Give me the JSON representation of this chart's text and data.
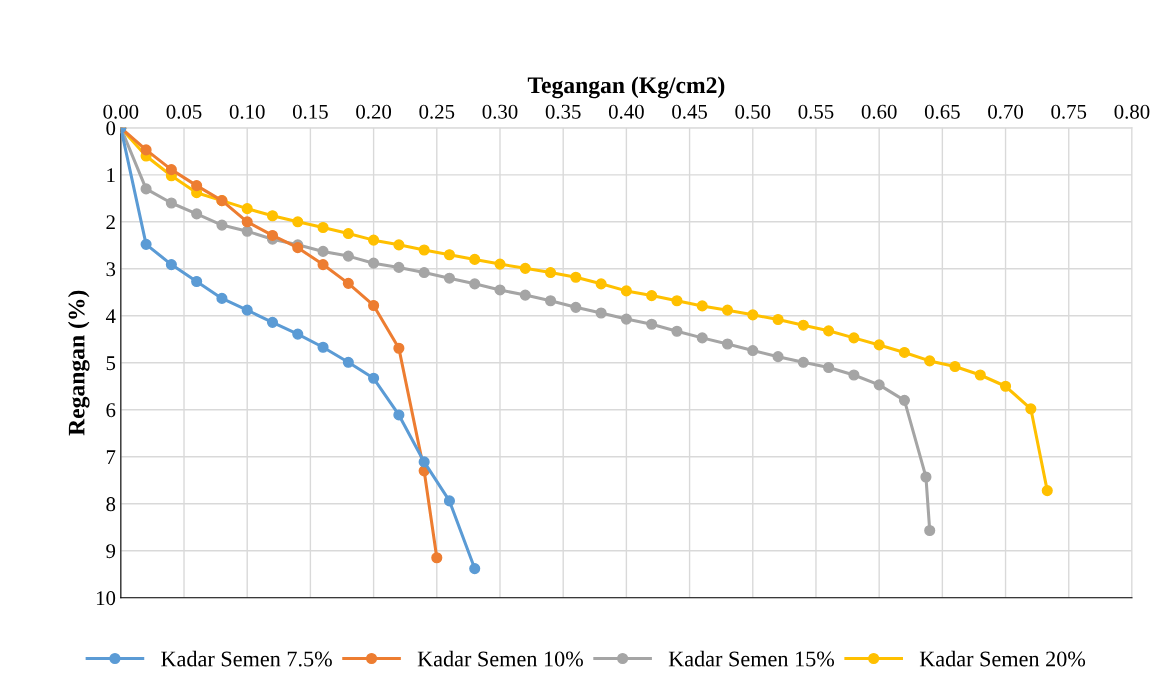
{
  "chart_data": {
    "type": "line",
    "xlabel": "Tegangan (Kg/cm2)",
    "ylabel": "Regangan (%)",
    "xlim": [
      0,
      0.8
    ],
    "xticks": [
      {
        "value": 0,
        "label": "0.00"
      },
      {
        "value": 0.05,
        "label": "0.05"
      },
      {
        "value": 0.1,
        "label": "0.10"
      },
      {
        "value": 0.15,
        "label": "0.15"
      },
      {
        "value": 0.2,
        "label": "0.20"
      },
      {
        "value": 0.25,
        "label": "0.25"
      },
      {
        "value": 0.3,
        "label": "0.30"
      },
      {
        "value": 0.35,
        "label": "0.35"
      },
      {
        "value": 0.4,
        "label": "0.40"
      },
      {
        "value": 0.45,
        "label": "0.45"
      },
      {
        "value": 0.5,
        "label": "0.50"
      },
      {
        "value": 0.55,
        "label": "0.55"
      },
      {
        "value": 0.6,
        "label": "0.60"
      },
      {
        "value": 0.65,
        "label": "0.65"
      },
      {
        "value": 0.7,
        "label": "0.70"
      },
      {
        "value": 0.75,
        "label": "0.75"
      },
      {
        "value": 0.8,
        "label": "0.80"
      }
    ],
    "ylim": [
      10,
      0
    ],
    "yticks": [
      0,
      1,
      2,
      3,
      4,
      5,
      6,
      7,
      8,
      9,
      10
    ],
    "grid": true,
    "legend": "bottom",
    "marker": "circle",
    "line_style": "solid",
    "series": [
      {
        "name": "Kadar Semen 7.5%",
        "color": "#5b9bd5",
        "x": [
          0,
          0.02,
          0.04,
          0.06,
          0.08,
          0.1,
          0.12,
          0.14,
          0.16,
          0.18,
          0.2,
          0.22,
          0.24,
          0.26,
          0.28
        ],
        "values": [
          0,
          2.48,
          2.91,
          3.27,
          3.63,
          3.88,
          4.14,
          4.39,
          4.67,
          4.99,
          5.33,
          6.11,
          7.11,
          7.94,
          9.38
        ]
      },
      {
        "name": "Kadar Semen 10%",
        "color": "#ed7d31",
        "x": [
          0,
          0.02,
          0.04,
          0.06,
          0.08,
          0.1,
          0.12,
          0.14,
          0.16,
          0.18,
          0.2,
          0.22,
          0.24,
          0.25
        ],
        "values": [
          0,
          0.47,
          0.89,
          1.23,
          1.55,
          2.0,
          2.29,
          2.55,
          2.91,
          3.31,
          3.78,
          4.69,
          7.3,
          9.15
        ]
      },
      {
        "name": "Kadar Semen 15%",
        "color": "#a5a5a5",
        "x": [
          0,
          0.02,
          0.04,
          0.06,
          0.08,
          0.1,
          0.12,
          0.14,
          0.16,
          0.18,
          0.2,
          0.22,
          0.24,
          0.26,
          0.28,
          0.3,
          0.32,
          0.34,
          0.36,
          0.38,
          0.4,
          0.42,
          0.44,
          0.46,
          0.48,
          0.5,
          0.52,
          0.54,
          0.56,
          0.58,
          0.6,
          0.62,
          0.637,
          0.64
        ],
        "values": [
          0,
          1.3,
          1.6,
          1.83,
          2.07,
          2.2,
          2.37,
          2.49,
          2.63,
          2.73,
          2.88,
          2.97,
          3.08,
          3.2,
          3.32,
          3.45,
          3.56,
          3.68,
          3.82,
          3.94,
          4.07,
          4.18,
          4.33,
          4.47,
          4.6,
          4.74,
          4.87,
          4.99,
          5.1,
          5.26,
          5.47,
          5.8,
          7.43,
          8.57
        ]
      },
      {
        "name": "Kadar Semen 20%",
        "color": "#ffc000",
        "x": [
          0,
          0.02,
          0.04,
          0.06,
          0.08,
          0.1,
          0.12,
          0.14,
          0.16,
          0.18,
          0.2,
          0.22,
          0.24,
          0.26,
          0.28,
          0.3,
          0.32,
          0.34,
          0.36,
          0.38,
          0.4,
          0.42,
          0.44,
          0.46,
          0.48,
          0.5,
          0.52,
          0.54,
          0.56,
          0.58,
          0.6,
          0.62,
          0.64,
          0.66,
          0.68,
          0.7,
          0.72,
          0.733
        ],
        "values": [
          0,
          0.6,
          1.02,
          1.38,
          1.55,
          1.72,
          1.87,
          2.0,
          2.12,
          2.25,
          2.39,
          2.49,
          2.6,
          2.7,
          2.8,
          2.9,
          2.99,
          3.08,
          3.18,
          3.32,
          3.47,
          3.57,
          3.68,
          3.79,
          3.88,
          3.98,
          4.08,
          4.2,
          4.32,
          4.47,
          4.62,
          4.78,
          4.96,
          5.08,
          5.26,
          5.5,
          5.98,
          7.72
        ]
      }
    ]
  }
}
